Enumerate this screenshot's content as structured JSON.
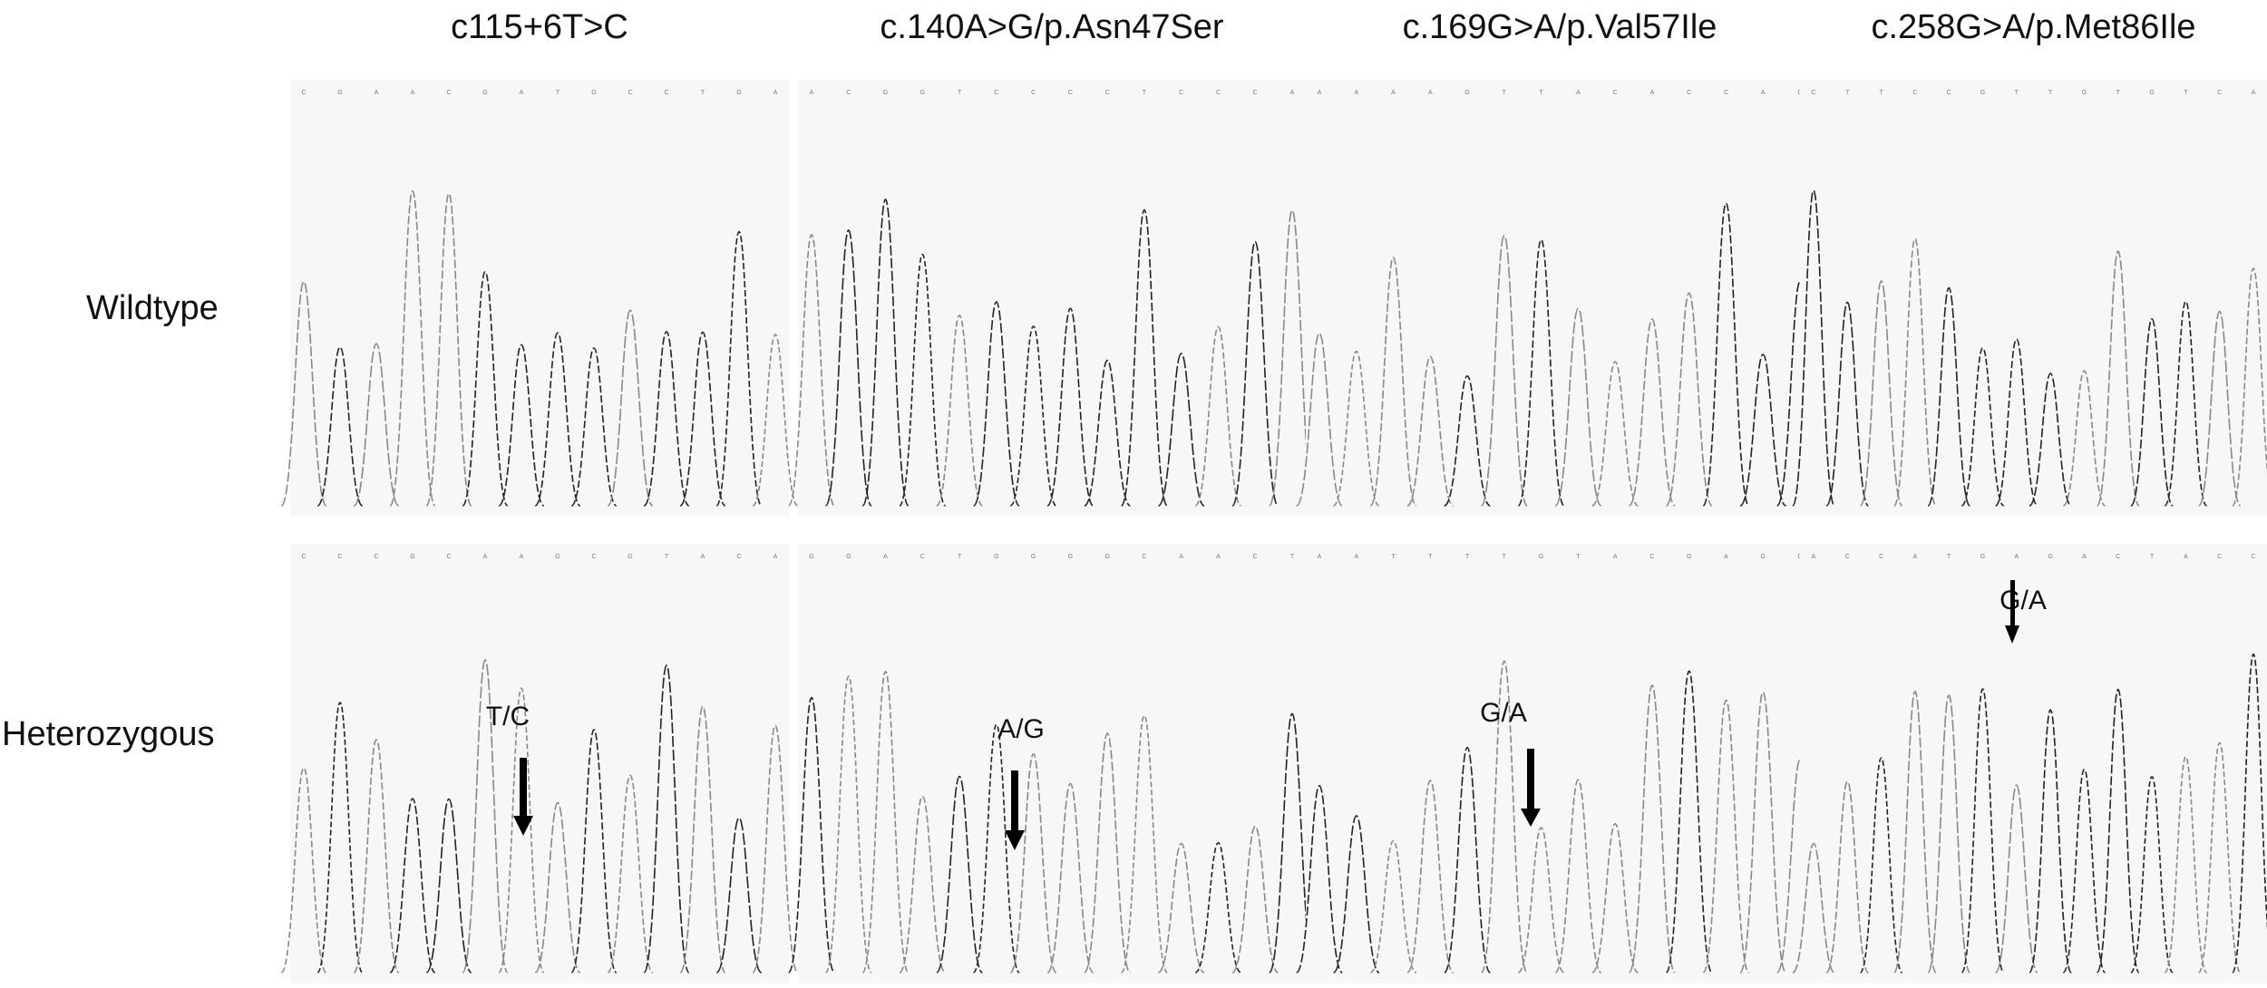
{
  "columns": [
    {
      "title": "c115+6T>C",
      "variant_label": "T/C"
    },
    {
      "title": "c.140A>G/p.Asn47Ser",
      "variant_label": "A/G"
    },
    {
      "title": "c.169G>A/p.Val57Ile",
      "variant_label": "G/A"
    },
    {
      "title": "c.258G>A/p.Met86Ile",
      "variant_label": "G/A"
    }
  ],
  "rows": [
    {
      "label": "Wildtype"
    },
    {
      "label": "Heterozygous"
    }
  ]
}
